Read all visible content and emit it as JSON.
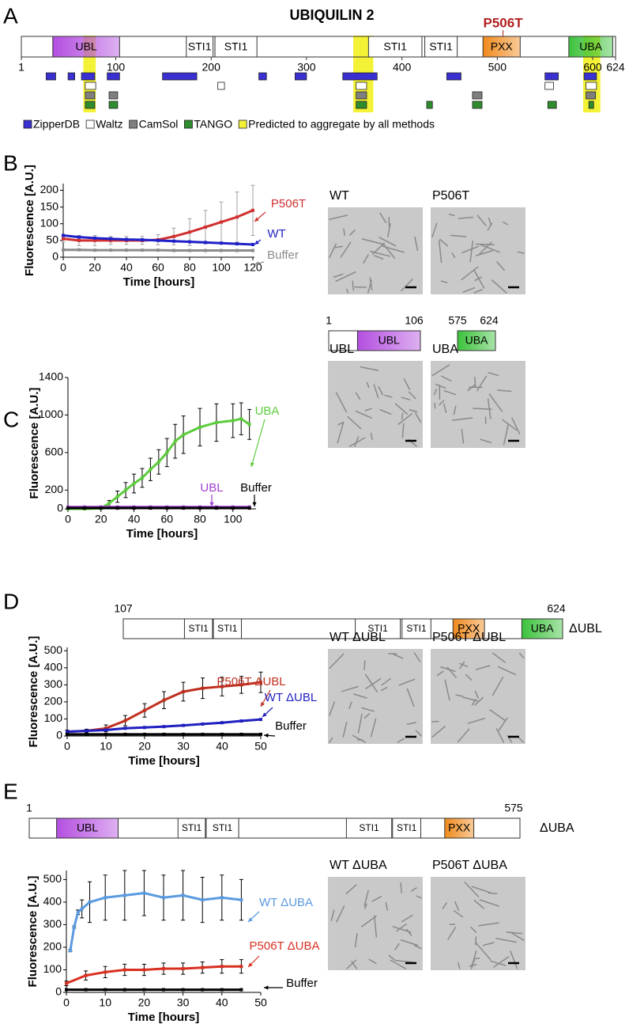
{
  "panel_labels": [
    "A",
    "B",
    "C",
    "D",
    "E"
  ],
  "domain_map": {
    "title": "UBIQUILIN 2",
    "xlim": [
      1,
      624
    ],
    "xticks": [
      1,
      100,
      200,
      300,
      400,
      500,
      600,
      624
    ],
    "mutation": {
      "label": "P506T",
      "position": 506
    },
    "domains": [
      {
        "name": "UBL",
        "start": 34,
        "end": 104,
        "color": "#b44fe0"
      },
      {
        "name": "STI1",
        "start": 174,
        "end": 202,
        "color": "#ffffff"
      },
      {
        "name": "STI1",
        "start": 204,
        "end": 248,
        "color": "#ffffff"
      },
      {
        "name": "STI1",
        "start": 365,
        "end": 421,
        "color": "#ffffff"
      },
      {
        "name": "STI1",
        "start": 424,
        "end": 458,
        "color": "#ffffff"
      },
      {
        "name": "PXX",
        "start": 485,
        "end": 524,
        "color": "#f08a1c"
      },
      {
        "name": "UBA",
        "start": 575,
        "end": 621,
        "color": "#3cc23c"
      }
    ],
    "highlights": [
      [
        66,
        79
      ],
      [
        349,
        370
      ],
      [
        590,
        608
      ]
    ],
    "highlight_label": "Predicted to aggregate by all methods",
    "highlight_color": "#f4f236",
    "tracks": [
      {
        "name": "ZipperDB",
        "color": "#3a2fd0",
        "segments": [
          [
            27,
            37
          ],
          [
            50,
            57
          ],
          [
            64,
            78
          ],
          [
            91,
            104
          ],
          [
            149,
            185
          ],
          [
            250,
            258
          ],
          [
            288,
            300
          ],
          [
            338,
            374
          ],
          [
            447,
            462
          ],
          [
            550,
            564
          ],
          [
            591,
            604
          ]
        ]
      },
      {
        "name": "Waltz",
        "color": "#ffffff",
        "segments": [
          [
            68,
            79
          ],
          [
            207,
            214
          ],
          [
            352,
            363
          ],
          [
            550,
            559
          ],
          [
            593,
            604
          ]
        ]
      },
      {
        "name": "CamSol",
        "color": "#7f7f7f",
        "segments": [
          [
            68,
            78
          ],
          [
            93,
            102
          ],
          [
            352,
            363
          ],
          [
            474,
            484
          ],
          [
            593,
            603
          ]
        ]
      },
      {
        "name": "TANGO",
        "color": "#2e8b2e",
        "segments": [
          [
            68,
            78
          ],
          [
            93,
            102
          ],
          [
            352,
            363
          ],
          [
            426,
            432
          ],
          [
            474,
            484
          ],
          [
            553,
            562
          ],
          [
            596,
            601
          ]
        ]
      }
    ]
  },
  "constructs": [
    {
      "fragments": [
        {
          "start": 1,
          "end": 106,
          "domains": [
            {
              "name": "UBL",
              "start": 34,
              "end": 106,
              "color": "#b44fe0"
            }
          ]
        },
        {
          "start": 575,
          "end": 624,
          "domains": [
            {
              "name": "UBA",
              "start": 575,
              "end": 624,
              "color": "#3cc23c"
            }
          ]
        }
      ]
    },
    {
      "name": "ΔUBL",
      "fragments": [
        {
          "start": 107,
          "end": 624,
          "domains": [
            {
              "name": "STI1",
              "start": 179,
              "end": 212,
              "color": "#ffffff"
            },
            {
              "name": "STI1",
              "start": 213,
              "end": 246,
              "color": "#ffffff"
            },
            {
              "name": "STI1",
              "start": 380,
              "end": 433,
              "color": "#ffffff"
            },
            {
              "name": "STI1",
              "start": 435,
              "end": 469,
              "color": "#ffffff"
            },
            {
              "name": "PXX",
              "start": 495,
              "end": 532,
              "color": "#f08a1c"
            },
            {
              "name": "UBA",
              "start": 576,
              "end": 624,
              "color": "#3cc23c"
            }
          ]
        }
      ]
    },
    {
      "name": "ΔUBA",
      "fragments": [
        {
          "start": 1,
          "end": 575,
          "domains": [
            {
              "name": "UBL",
              "start": 33,
              "end": 105,
              "color": "#b44fe0"
            },
            {
              "name": "STI1",
              "start": 175,
              "end": 207,
              "color": "#ffffff"
            },
            {
              "name": "STI1",
              "start": 208,
              "end": 246,
              "color": "#ffffff"
            },
            {
              "name": "STI1",
              "start": 372,
              "end": 425,
              "color": "#ffffff"
            },
            {
              "name": "STI1",
              "start": 426,
              "end": 459,
              "color": "#ffffff"
            },
            {
              "name": "PXX",
              "start": 487,
              "end": 521,
              "color": "#f08a1c"
            }
          ]
        }
      ]
    }
  ],
  "chart_data": [
    {
      "type": "line",
      "x_label": "Time [hours]",
      "y_label": "Fluorescence [A.U.]",
      "xlim": [
        0,
        121
      ],
      "ylim": [
        0,
        220
      ],
      "xticks": [
        0,
        20,
        40,
        60,
        80,
        100,
        120
      ],
      "yticks": [
        0,
        50,
        100,
        150,
        200
      ],
      "series": [
        {
          "name": "P506T",
          "color": "#d03030",
          "error_color": "#a0a0a0",
          "x": [
            0,
            10,
            20,
            30,
            40,
            50,
            60,
            70,
            80,
            90,
            100,
            110,
            120
          ],
          "values": [
            55,
            50,
            50,
            50,
            50,
            50,
            52,
            62,
            75,
            90,
            105,
            120,
            140
          ],
          "errors": [
            10,
            15,
            15,
            12,
            12,
            12,
            15,
            25,
            40,
            50,
            60,
            75,
            75
          ]
        },
        {
          "name": "WT",
          "color": "#2020c8",
          "x": [
            0,
            10,
            20,
            30,
            40,
            50,
            60,
            70,
            80,
            90,
            100,
            110,
            120
          ],
          "values": [
            65,
            60,
            57,
            55,
            53,
            52,
            50,
            48,
            46,
            44,
            42,
            40,
            38
          ]
        },
        {
          "name": "Buffer",
          "color": "#8c8c8c",
          "x": [
            0,
            10,
            20,
            30,
            40,
            50,
            60,
            70,
            80,
            90,
            100,
            110,
            120
          ],
          "values": [
            22,
            22,
            21,
            21,
            21,
            21,
            21,
            20,
            20,
            20,
            20,
            20,
            20
          ]
        }
      ]
    },
    {
      "type": "line",
      "x_label": "Time [hours]",
      "y_label": "Fluorescence [A.U.]",
      "xlim": [
        0,
        114
      ],
      "ylim": [
        0,
        1400
      ],
      "xticks": [
        0,
        20,
        40,
        60,
        80,
        100
      ],
      "yticks": [
        0,
        200,
        600,
        1000,
        1400
      ],
      "series": [
        {
          "name": "UBA",
          "color": "#5ccc3c",
          "error_color": "#000000",
          "x": [
            0,
            10,
            20,
            25,
            30,
            35,
            40,
            45,
            50,
            55,
            60,
            65,
            70,
            80,
            90,
            100,
            105,
            110
          ],
          "values": [
            0,
            0,
            5,
            60,
            130,
            200,
            270,
            330,
            420,
            500,
            600,
            720,
            790,
            870,
            920,
            940,
            960,
            900
          ],
          "errors": [
            0,
            0,
            5,
            30,
            60,
            80,
            100,
            100,
            120,
            130,
            150,
            180,
            200,
            200,
            200,
            180,
            170,
            160
          ]
        },
        {
          "name": "UBL",
          "color": "#a040d0",
          "x": [
            0,
            10,
            20,
            30,
            40,
            50,
            60,
            70,
            80,
            90,
            100,
            110
          ],
          "values": [
            20,
            20,
            20,
            20,
            20,
            20,
            20,
            20,
            20,
            20,
            20,
            20
          ]
        },
        {
          "name": "Buffer",
          "color": "#000000",
          "x": [
            0,
            10,
            20,
            30,
            40,
            50,
            60,
            70,
            80,
            90,
            100,
            110
          ],
          "values": [
            8,
            8,
            8,
            8,
            8,
            8,
            8,
            8,
            8,
            8,
            8,
            8
          ]
        }
      ]
    },
    {
      "type": "line",
      "x_label": "Time [hours]",
      "y_label": "Fluorescence [A.U.]",
      "xlim": [
        0,
        50
      ],
      "ylim": [
        0,
        520
      ],
      "xticks": [
        0,
        10,
        20,
        30,
        40,
        50
      ],
      "yticks": [
        0,
        100,
        200,
        300,
        400,
        500
      ],
      "series": [
        {
          "name": "P506T ΔUBL",
          "color": "#c03020",
          "error_color": "#000000",
          "x": [
            0,
            5,
            10,
            15,
            20,
            25,
            30,
            35,
            40,
            45,
            50
          ],
          "values": [
            25,
            30,
            45,
            90,
            150,
            210,
            260,
            280,
            290,
            300,
            315
          ],
          "errors": [
            10,
            10,
            20,
            30,
            40,
            50,
            55,
            60,
            55,
            50,
            60
          ]
        },
        {
          "name": "WT ΔUBL",
          "color": "#2020c0",
          "x": [
            0,
            5,
            10,
            15,
            20,
            25,
            30,
            35,
            40,
            45,
            50
          ],
          "values": [
            25,
            30,
            35,
            45,
            50,
            55,
            62,
            70,
            78,
            88,
            97
          ]
        },
        {
          "name": "Buffer",
          "color": "#000000",
          "x": [
            0,
            5,
            10,
            15,
            20,
            25,
            30,
            35,
            40,
            45,
            50
          ],
          "values": [
            10,
            10,
            10,
            10,
            10,
            10,
            10,
            10,
            10,
            10,
            10
          ]
        }
      ]
    },
    {
      "type": "line",
      "x_label": "Time [hours]",
      "y_label": "Fluorescence [A.U.]",
      "xlim": [
        0,
        50
      ],
      "ylim": [
        0,
        540
      ],
      "xticks": [
        0,
        10,
        20,
        30,
        40,
        50
      ],
      "yticks": [
        0,
        100,
        200,
        300,
        400,
        500
      ],
      "series": [
        {
          "name": "WT ΔUBA",
          "color": "#5a9ae0",
          "error_color": "#000000",
          "x": [
            1,
            2,
            3,
            4,
            6,
            10,
            15,
            20,
            25,
            30,
            35,
            40,
            45
          ],
          "values": [
            185,
            290,
            355,
            370,
            400,
            420,
            430,
            440,
            420,
            430,
            410,
            420,
            410
          ],
          "errors": [
            5,
            5,
            10,
            40,
            90,
            100,
            110,
            100,
            100,
            110,
            100,
            100,
            90
          ]
        },
        {
          "name": "P506T ΔUBA",
          "color": "#d83020",
          "error_color": "#000000",
          "x": [
            0,
            5,
            10,
            15,
            20,
            25,
            30,
            35,
            40,
            45
          ],
          "values": [
            40,
            75,
            90,
            100,
            100,
            105,
            105,
            110,
            115,
            115
          ],
          "errors": [
            10,
            20,
            25,
            25,
            25,
            25,
            25,
            25,
            30,
            30
          ]
        },
        {
          "name": "Buffer",
          "color": "#000000",
          "x": [
            0,
            5,
            10,
            15,
            20,
            25,
            30,
            35,
            40,
            45
          ],
          "values": [
            12,
            12,
            12,
            12,
            12,
            12,
            12,
            12,
            12,
            12
          ]
        }
      ]
    }
  ],
  "micrographs": [
    [
      "WT",
      "P506T"
    ],
    [
      "UBL",
      "UBA"
    ],
    [
      "WT ΔUBL",
      "P506T ΔUBL"
    ],
    [
      "WT ΔUBA",
      "P506T ΔUBA"
    ]
  ]
}
